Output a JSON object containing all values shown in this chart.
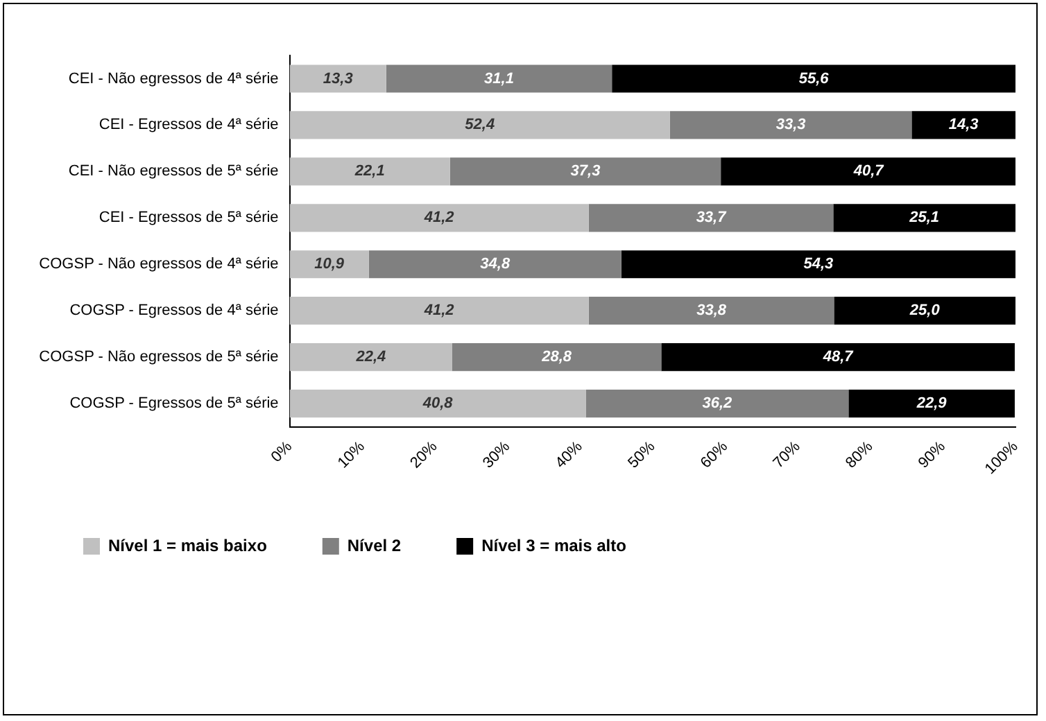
{
  "chart_data": {
    "type": "bar",
    "orientation": "horizontal",
    "stacked": true,
    "grid": false,
    "legend": "bottom left",
    "categories": [
      "CEI - Não egressos de 4ª série",
      "CEI - Egressos de 4ª série",
      "CEI - Não egressos de 5ª série",
      "CEI - Egressos de 5ª série",
      "COGSP - Não egressos de 4ª série",
      "COGSP - Egressos de 4ª série",
      "COGSP - Não egressos de 5ª série",
      "COGSP - Egressos de 5ª série"
    ],
    "series": [
      {
        "name": "Nível 1 = mais baixo",
        "color": "#c0c0c0",
        "values": [
          13.3,
          52.4,
          22.1,
          41.2,
          10.9,
          41.2,
          22.4,
          40.8
        ],
        "value_labels": [
          "13,3",
          "52,4",
          "22,1",
          "41,2",
          "10,9",
          "41,2",
          "22,4",
          "40,8"
        ]
      },
      {
        "name": "Nível 2",
        "color": "#808080",
        "values": [
          31.1,
          33.3,
          37.3,
          33.7,
          34.8,
          33.8,
          28.8,
          36.2
        ],
        "value_labels": [
          "31,1",
          "33,3",
          "37,3",
          "33,7",
          "34,8",
          "33,8",
          "28,8",
          "36,2"
        ]
      },
      {
        "name": "Nível 3 = mais alto",
        "color": "#000000",
        "values": [
          55.6,
          14.3,
          40.7,
          25.1,
          54.3,
          25.0,
          48.7,
          22.9
        ],
        "value_labels": [
          "55,6",
          "14,3",
          "40,7",
          "25,1",
          "54,3",
          "25,0",
          "48,7",
          "22,9"
        ]
      }
    ],
    "xlim": [
      0,
      100
    ],
    "xticks": [
      {
        "value": 0,
        "label": "0%"
      },
      {
        "value": 10,
        "label": "10%"
      },
      {
        "value": 20,
        "label": "20%"
      },
      {
        "value": 30,
        "label": "30%"
      },
      {
        "value": 40,
        "label": "40%"
      },
      {
        "value": 50,
        "label": "50%"
      },
      {
        "value": 60,
        "label": "60%"
      },
      {
        "value": 70,
        "label": "70%"
      },
      {
        "value": 80,
        "label": "80%"
      },
      {
        "value": 90,
        "label": "90%"
      },
      {
        "value": 100,
        "label": "100%"
      }
    ]
  }
}
